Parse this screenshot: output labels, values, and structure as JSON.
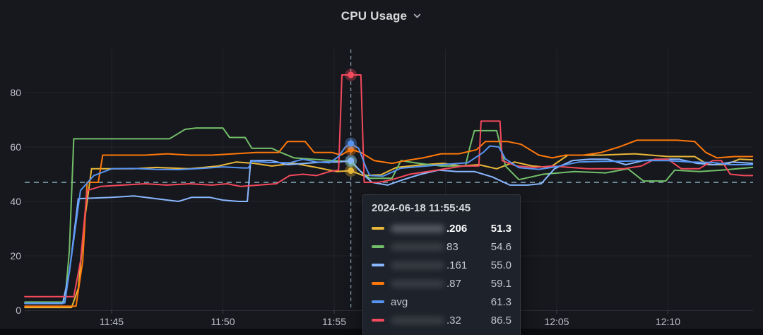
{
  "panel": {
    "title": "CPU Usage"
  },
  "chart_data": {
    "type": "line",
    "title": "CPU Usage",
    "unit": "percent",
    "grid": true,
    "x_axis": {
      "time_origin": "11:40",
      "ticks": [
        {
          "label": "11:45",
          "minute": 5
        },
        {
          "label": "11:50",
          "minute": 10
        },
        {
          "label": "11:55",
          "minute": 15
        },
        {
          "label": "12:00",
          "minute": 20
        },
        {
          "label": "12:05",
          "minute": 25
        },
        {
          "label": "12:10",
          "minute": 30
        }
      ],
      "range_minutes": [
        1.1,
        33.8
      ]
    },
    "y_axis": {
      "ticks": [
        0,
        20,
        40,
        60,
        80
      ],
      "min": 0,
      "max": 95.8
    },
    "threshold_line": {
      "value": 47,
      "color": "#86aec0",
      "style": "dashed"
    },
    "cursor": {
      "time_minute": 15.75,
      "time_label": "11:55:45"
    },
    "series": [
      {
        "id": "yellow",
        "label_suffix": ".206",
        "redacted": true,
        "color": "#EAB839",
        "cursor_value": 51.3,
        "points": [
          [
            1.1,
            1
          ],
          [
            3.2,
            1
          ],
          [
            3.5,
            8
          ],
          [
            3.8,
            34
          ],
          [
            4.1,
            52
          ],
          [
            6,
            52
          ],
          [
            7,
            52.5
          ],
          [
            8.5,
            52
          ],
          [
            9.8,
            53
          ],
          [
            10.6,
            54.5
          ],
          [
            11.4,
            54
          ],
          [
            12.2,
            53
          ],
          [
            13.2,
            54
          ],
          [
            14.2,
            52.5
          ],
          [
            15.1,
            51
          ],
          [
            15.75,
            51.3
          ],
          [
            16.3,
            49.5
          ],
          [
            17.1,
            49.8
          ],
          [
            17.8,
            52.5
          ],
          [
            19,
            53.5
          ],
          [
            19.9,
            54
          ],
          [
            20.7,
            53
          ],
          [
            21.5,
            53.5
          ],
          [
            22.3,
            52
          ],
          [
            23.1,
            54.5
          ],
          [
            23.9,
            53
          ],
          [
            24.7,
            52.5
          ],
          [
            25.5,
            57
          ],
          [
            27,
            57
          ],
          [
            28.5,
            57.5
          ],
          [
            30,
            56.5
          ],
          [
            31.2,
            56.5
          ],
          [
            31.8,
            53.5
          ],
          [
            32.6,
            53.5
          ],
          [
            33.2,
            55.5
          ],
          [
            33.8,
            55.3
          ]
        ]
      },
      {
        "id": "green",
        "label_suffix": "83",
        "redacted": true,
        "color": "#73BF69",
        "cursor_value": 54.6,
        "points": [
          [
            1.1,
            3
          ],
          [
            2.9,
            3
          ],
          [
            3.1,
            22
          ],
          [
            3.3,
            63
          ],
          [
            7.6,
            63
          ],
          [
            7.9,
            64.5
          ],
          [
            8.3,
            66.5
          ],
          [
            8.8,
            67
          ],
          [
            10,
            67
          ],
          [
            10.3,
            63.5
          ],
          [
            11,
            63.5
          ],
          [
            11.3,
            59.5
          ],
          [
            12.2,
            59.5
          ],
          [
            12.6,
            58
          ],
          [
            13.2,
            56
          ],
          [
            14,
            55.5
          ],
          [
            15,
            55
          ],
          [
            15.75,
            54.6
          ],
          [
            16.2,
            51
          ],
          [
            16.6,
            48.5
          ],
          [
            17.6,
            48.5
          ],
          [
            18,
            55
          ],
          [
            18.8,
            54
          ],
          [
            19.8,
            53
          ],
          [
            20.9,
            53
          ],
          [
            21.1,
            60
          ],
          [
            21.3,
            66
          ],
          [
            22.3,
            66
          ],
          [
            22.7,
            53
          ],
          [
            23.3,
            48
          ],
          [
            24.4,
            50
          ],
          [
            25.8,
            51
          ],
          [
            27.2,
            50.5
          ],
          [
            28.2,
            52
          ],
          [
            28.9,
            47.5
          ],
          [
            29.9,
            47.5
          ],
          [
            30.3,
            51.5
          ],
          [
            31.4,
            51
          ],
          [
            32.4,
            51.5
          ],
          [
            33.8,
            52.5
          ]
        ]
      },
      {
        "id": "light-blue",
        "label_suffix": ".161",
        "redacted": true,
        "color": "#8AB8FF",
        "cursor_value": 55.0,
        "points": [
          [
            1.1,
            2.5
          ],
          [
            2.8,
            2.5
          ],
          [
            3.1,
            14
          ],
          [
            3.5,
            41
          ],
          [
            5,
            41.5
          ],
          [
            6,
            42
          ],
          [
            7,
            41
          ],
          [
            8,
            40
          ],
          [
            8.6,
            41.5
          ],
          [
            9.4,
            41.5
          ],
          [
            10,
            40.5
          ],
          [
            10.7,
            40
          ],
          [
            11.1,
            40
          ],
          [
            11.25,
            55
          ],
          [
            12.2,
            55
          ],
          [
            12.9,
            53.5
          ],
          [
            13.7,
            54
          ],
          [
            14.5,
            54.5
          ],
          [
            15.2,
            54.5
          ],
          [
            15.75,
            55
          ],
          [
            16.3,
            50
          ],
          [
            16.7,
            47
          ],
          [
            17.4,
            46
          ],
          [
            18.1,
            48
          ],
          [
            18.9,
            50
          ],
          [
            19.7,
            51.5
          ],
          [
            20.5,
            51
          ],
          [
            21.3,
            51
          ],
          [
            22.1,
            49
          ],
          [
            22.9,
            46
          ],
          [
            23.7,
            46
          ],
          [
            24.3,
            46.5
          ],
          [
            24.9,
            52
          ],
          [
            25.7,
            55
          ],
          [
            26.5,
            55.5
          ],
          [
            27.3,
            55.5
          ],
          [
            28.1,
            53.5
          ],
          [
            28.9,
            55
          ],
          [
            29.7,
            55.5
          ],
          [
            30.5,
            55.5
          ],
          [
            31.3,
            54
          ],
          [
            32.1,
            53.5
          ],
          [
            32.9,
            54.5
          ],
          [
            33.8,
            54
          ]
        ]
      },
      {
        "id": "orange",
        "label_suffix": ".87",
        "redacted": true,
        "color": "#FF780A",
        "cursor_value": 59.1,
        "points": [
          [
            1.1,
            1.5
          ],
          [
            3.4,
            1.5
          ],
          [
            3.7,
            18
          ],
          [
            3.9,
            47
          ],
          [
            4.4,
            47
          ],
          [
            4.6,
            57
          ],
          [
            6.5,
            57
          ],
          [
            7.5,
            57.5
          ],
          [
            8.5,
            57
          ],
          [
            9.5,
            57
          ],
          [
            10.5,
            57.5
          ],
          [
            11.5,
            58
          ],
          [
            12.5,
            58
          ],
          [
            12.9,
            62
          ],
          [
            13.7,
            62
          ],
          [
            14.1,
            58
          ],
          [
            14.9,
            58
          ],
          [
            15.3,
            57
          ],
          [
            15.75,
            59.1
          ],
          [
            16.2,
            58
          ],
          [
            16.8,
            55
          ],
          [
            17.6,
            54
          ],
          [
            18.2,
            55
          ],
          [
            19,
            56
          ],
          [
            19.8,
            57.5
          ],
          [
            20.6,
            57.5
          ],
          [
            21.4,
            59
          ],
          [
            21.8,
            62
          ],
          [
            22.8,
            62
          ],
          [
            23.4,
            61
          ],
          [
            24.2,
            57
          ],
          [
            24.8,
            56
          ],
          [
            25.4,
            57
          ],
          [
            26.2,
            57
          ],
          [
            27,
            58
          ],
          [
            27.8,
            60
          ],
          [
            28.6,
            62.5
          ],
          [
            30.4,
            62.5
          ],
          [
            31.2,
            62
          ],
          [
            31.7,
            58
          ],
          [
            32.2,
            56
          ],
          [
            33,
            56.5
          ],
          [
            33.8,
            56.5
          ]
        ]
      },
      {
        "id": "red",
        "label_suffix": ".32",
        "redacted": true,
        "color": "#F2495C",
        "cursor_value": 86.5,
        "points": [
          [
            1.1,
            5
          ],
          [
            3.3,
            5
          ],
          [
            3.6,
            18
          ],
          [
            3.9,
            44
          ],
          [
            4.5,
            45.5
          ],
          [
            5.5,
            46
          ],
          [
            6.5,
            46.5
          ],
          [
            7.5,
            46
          ],
          [
            8.5,
            46.5
          ],
          [
            9.5,
            46
          ],
          [
            10.2,
            46.5
          ],
          [
            10.8,
            45.5
          ],
          [
            11.6,
            46
          ],
          [
            12.4,
            46.5
          ],
          [
            13,
            49.5
          ],
          [
            13.6,
            50
          ],
          [
            14.2,
            49.5
          ],
          [
            14.8,
            51
          ],
          [
            15.2,
            51.5
          ],
          [
            15.35,
            86.5
          ],
          [
            16.2,
            86.5
          ],
          [
            16.35,
            47
          ],
          [
            17,
            47
          ],
          [
            17.6,
            48
          ],
          [
            18.4,
            50
          ],
          [
            19.2,
            51
          ],
          [
            20,
            52
          ],
          [
            20.8,
            53
          ],
          [
            21.5,
            53
          ],
          [
            21.6,
            69.5
          ],
          [
            22.45,
            69.5
          ],
          [
            22.55,
            55
          ],
          [
            23.2,
            53
          ],
          [
            24,
            52.5
          ],
          [
            24.8,
            53
          ],
          [
            25.6,
            52.5
          ],
          [
            26.4,
            52
          ],
          [
            28,
            52
          ],
          [
            28.8,
            53
          ],
          [
            29.4,
            55.5
          ],
          [
            30,
            55.5
          ],
          [
            30.6,
            52
          ],
          [
            31.4,
            52
          ],
          [
            32,
            55
          ],
          [
            32.4,
            55
          ],
          [
            32.8,
            50
          ],
          [
            33.4,
            49.5
          ],
          [
            33.8,
            49.5
          ]
        ]
      },
      {
        "id": "avg",
        "label_suffix": "avg",
        "redacted": false,
        "color": "#5794F2",
        "cursor_value": 61.3,
        "points": [
          [
            1.1,
            2.6
          ],
          [
            2.9,
            2.7
          ],
          [
            3.2,
            20
          ],
          [
            3.6,
            44
          ],
          [
            4.2,
            49.5
          ],
          [
            5,
            52
          ],
          [
            6,
            52.1
          ],
          [
            7,
            51.8
          ],
          [
            8,
            51.7
          ],
          [
            9,
            52.1
          ],
          [
            10,
            52.7
          ],
          [
            10.9,
            52.3
          ],
          [
            11.15,
            52.3
          ],
          [
            11.3,
            54.8
          ],
          [
            12,
            54.3
          ],
          [
            13,
            54.2
          ],
          [
            13.6,
            55.5
          ],
          [
            14.2,
            54.5
          ],
          [
            14.8,
            54.2
          ],
          [
            15.2,
            56.5
          ],
          [
            15.5,
            60
          ],
          [
            15.75,
            61.3
          ],
          [
            16.1,
            59.5
          ],
          [
            16.45,
            52
          ],
          [
            16.6,
            49.5
          ],
          [
            17.2,
            49.3
          ],
          [
            18,
            52.2
          ],
          [
            19,
            52.9
          ],
          [
            20,
            53.6
          ],
          [
            21,
            54.2
          ],
          [
            21.7,
            58
          ],
          [
            22,
            60.4
          ],
          [
            22.4,
            60
          ],
          [
            22.7,
            55.6
          ],
          [
            23.3,
            52.4
          ],
          [
            24.2,
            51.8
          ],
          [
            25,
            52.8
          ],
          [
            26,
            54.5
          ],
          [
            27,
            54.7
          ],
          [
            28,
            54.8
          ],
          [
            29,
            55
          ],
          [
            30,
            55
          ],
          [
            31,
            54.5
          ],
          [
            32,
            54.3
          ],
          [
            32.8,
            53.5
          ],
          [
            33.8,
            53.5
          ]
        ]
      }
    ]
  },
  "tooltip": {
    "timestamp": "2024-06-18 11:55:45",
    "rows": [
      {
        "swatch_color": "#EAB839",
        "name_suffix": ".206",
        "redacted": true,
        "value": "51.3",
        "emphasized": true
      },
      {
        "swatch_color": "#73BF69",
        "name_suffix": "83",
        "redacted": true,
        "value": "54.6",
        "emphasized": false
      },
      {
        "swatch_color": "#8AB8FF",
        "name_suffix": ".161",
        "redacted": true,
        "value": "55.0",
        "emphasized": false
      },
      {
        "swatch_color": "#FF780A",
        "name_suffix": ".87",
        "redacted": true,
        "value": "59.1",
        "emphasized": false
      },
      {
        "swatch_color": "#5794F2",
        "name_suffix": "avg",
        "redacted": false,
        "value": "61.3",
        "emphasized": false
      },
      {
        "swatch_color": "#F2495C",
        "name_suffix": ".32",
        "redacted": true,
        "value": "86.5",
        "emphasized": false
      }
    ]
  }
}
